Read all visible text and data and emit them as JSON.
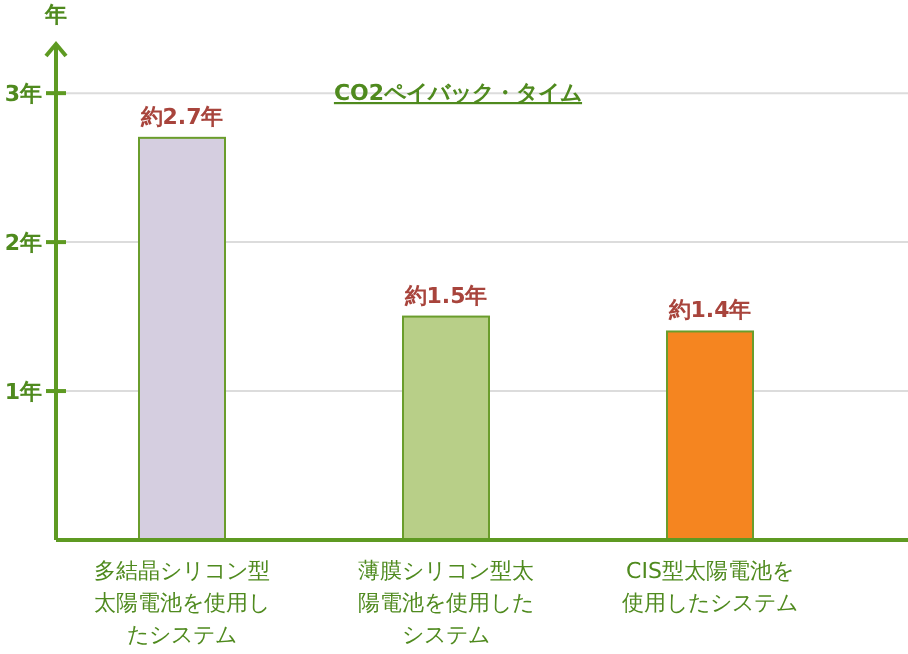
{
  "chart_data": {
    "type": "bar",
    "title": "CO2ペイバック・タイム",
    "ylabel": "年",
    "categories": [
      "多結晶シリコン型太陽電池を使用したシステム",
      "薄膜シリコン型太陽電池を使用したシステム",
      "CIS型太陽電池を使用したシステム"
    ],
    "values": [
      2.7,
      1.5,
      1.4
    ],
    "value_labels": [
      "約2.7年",
      "約1.5年",
      "約1.4年"
    ],
    "colors": [
      "#d5cee0",
      "#b8cf88",
      "#f58520"
    ],
    "ylim": [
      0,
      3.33
    ],
    "yticks": [
      {
        "value": 1,
        "label": "1年"
      },
      {
        "value": 2,
        "label": "2年"
      },
      {
        "value": 3,
        "label": "3年"
      }
    ],
    "grid": "y"
  }
}
